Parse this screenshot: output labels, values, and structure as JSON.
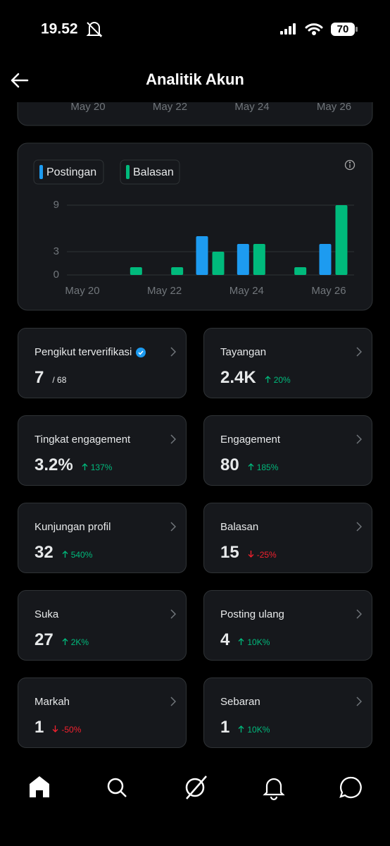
{
  "status_bar": {
    "time": "19.52",
    "battery": "70"
  },
  "header": {
    "title": "Analitik Akun"
  },
  "previous_chart": {
    "x_labels": [
      "May 20",
      "May 22",
      "May 24",
      "May 26"
    ]
  },
  "chart_data": {
    "type": "bar",
    "categories": [
      "May 20",
      null,
      "May 22",
      null,
      "May 24",
      null,
      "May 26"
    ],
    "series": [
      {
        "name": "Postingan",
        "color": "#1d9bf0",
        "values": [
          0,
          0,
          0,
          5,
          4,
          0,
          4
        ]
      },
      {
        "name": "Balasan",
        "color": "#00ba7c",
        "values": [
          0,
          1,
          1,
          3,
          4,
          1,
          9
        ]
      }
    ],
    "ylim": [
      0,
      9
    ],
    "yticks": [
      0,
      3,
      9
    ],
    "grid": true
  },
  "metrics": [
    {
      "label": "Pengikut terverifikasi",
      "value": "7",
      "total": "/ 68",
      "verified": true
    },
    {
      "label": "Tayangan",
      "value": "2.4K",
      "change": "20%",
      "direction": "up"
    },
    {
      "label": "Tingkat engagement",
      "value": "3.2%",
      "change": "137%",
      "direction": "up"
    },
    {
      "label": "Engagement",
      "value": "80",
      "change": "185%",
      "direction": "up"
    },
    {
      "label": "Kunjungan profil",
      "value": "32",
      "change": "540%",
      "direction": "up"
    },
    {
      "label": "Balasan",
      "value": "15",
      "change": "-25%",
      "direction": "down"
    },
    {
      "label": "Suka",
      "value": "27",
      "change": "2K%",
      "direction": "up"
    },
    {
      "label": "Posting ulang",
      "value": "4",
      "change": "10K%",
      "direction": "up"
    },
    {
      "label": "Markah",
      "value": "1",
      "change": "-50%",
      "direction": "down"
    },
    {
      "label": "Sebaran",
      "value": "1",
      "change": "10K%",
      "direction": "up"
    }
  ]
}
